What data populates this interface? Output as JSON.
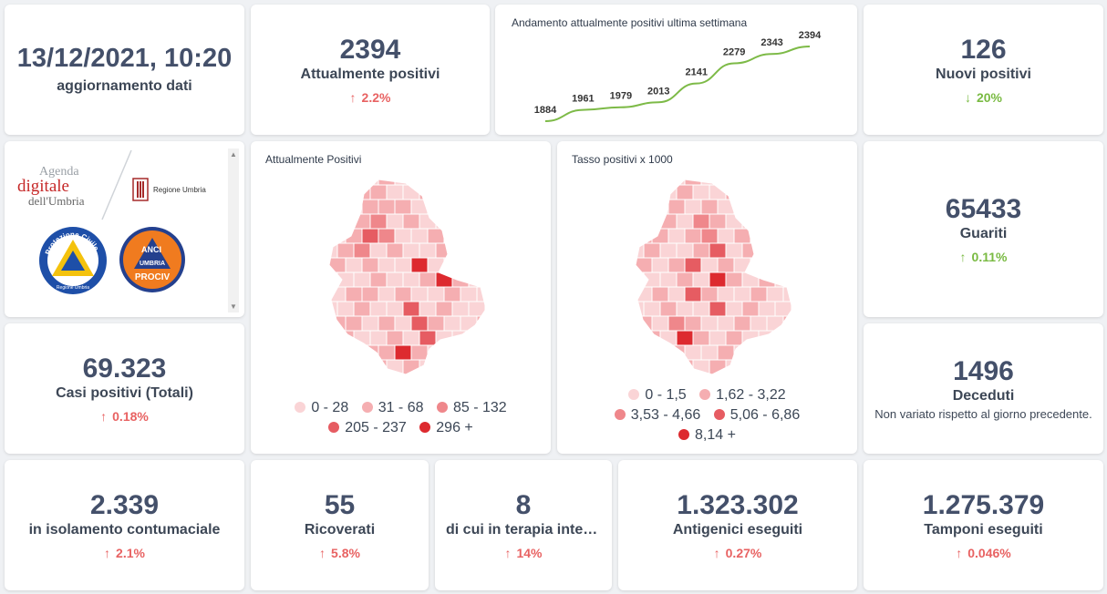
{
  "update": {
    "datetime": "13/12/2021, 10:20",
    "label": "aggiornamento dati"
  },
  "attualmente_positivi": {
    "value": "2394",
    "label": "Attualmente positivi",
    "delta": "2.2%",
    "direction": "up"
  },
  "trend": {
    "title": "Andamento attualmente positivi ultima settimana",
    "chart_data": {
      "type": "line",
      "values": [
        1884,
        1961,
        1979,
        2013,
        2141,
        2279,
        2343,
        2394
      ],
      "color": "#7dba47"
    }
  },
  "nuovi_positivi": {
    "value": "126",
    "label": "Nuovi positivi",
    "delta": "20%",
    "direction": "down"
  },
  "logos": {
    "agenda_line1": "Agenda",
    "agenda_line2": "digitale",
    "agenda_line3": "dell'Umbria",
    "regione": "Regione Umbria",
    "protezione": "Protezione Civile",
    "protezione_sub": "Regione Umbria",
    "anci1": "ANCI",
    "anci2": "UMBRIA",
    "anci3": "PROCIV"
  },
  "map_positivi": {
    "title": "Attualmente Positivi",
    "legend": [
      {
        "label": "0 - 28",
        "color": "#fad4d6"
      },
      {
        "label": "31 - 68",
        "color": "#f5aeb1"
      },
      {
        "label": "85 - 132",
        "color": "#ef878b"
      },
      {
        "label": "205 - 237",
        "color": "#e65c62"
      },
      {
        "label": "296 +",
        "color": "#dd2a2f"
      }
    ]
  },
  "map_tasso": {
    "title": "Tasso positivi x 1000",
    "legend": [
      {
        "label": "0 - 1,5",
        "color": "#fad4d6"
      },
      {
        "label": "1,62 - 3,22",
        "color": "#f5aeb1"
      },
      {
        "label": "3,53 - 4,66",
        "color": "#ef878b"
      },
      {
        "label": "5,06 - 6,86",
        "color": "#e65c62"
      },
      {
        "label": "8,14 +",
        "color": "#dd2a2f"
      }
    ]
  },
  "guariti": {
    "value": "65433",
    "label": "Guariti",
    "delta": "0.11%",
    "direction": "up"
  },
  "casi_totali": {
    "value": "69.323",
    "label": "Casi positivi (Totali)",
    "delta": "0.18%",
    "direction": "up"
  },
  "deceduti": {
    "value": "1496",
    "label": "Deceduti",
    "note": "Non variato rispetto al giorno precedente."
  },
  "isolamento": {
    "value": "2.339",
    "label": "in isolamento contumaciale",
    "delta": "2.1%",
    "direction": "up"
  },
  "ricoverati": {
    "value": "55",
    "label": "Ricoverati",
    "delta": "5.8%",
    "direction": "up"
  },
  "terapia": {
    "value": "8",
    "label": "di cui in terapia intensiva",
    "delta": "14%",
    "direction": "up"
  },
  "antigenici": {
    "value": "1.323.302",
    "label": "Antigenici eseguiti",
    "delta": "0.27%",
    "direction": "up"
  },
  "tamponi": {
    "value": "1.275.379",
    "label": "Tamponi eseguiti",
    "delta": "0.046%",
    "direction": "up"
  },
  "arrows": {
    "up": "↑",
    "down": "↓"
  }
}
